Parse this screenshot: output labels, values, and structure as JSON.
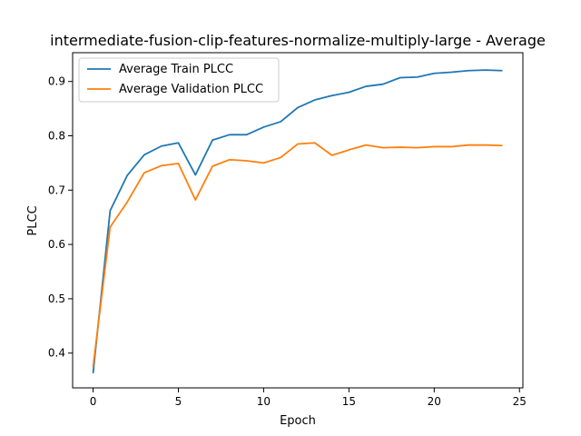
{
  "chart_data": {
    "type": "line",
    "title": "intermediate-fusion-clip-features-normalize-multiply-large - Average",
    "xlabel": "Epoch",
    "ylabel": "PLCC",
    "xlim": [
      -1.2,
      25.2
    ],
    "ylim": [
      0.336,
      0.953
    ],
    "xticks": [
      0,
      5,
      10,
      15,
      20,
      25
    ],
    "yticks": [
      0.4,
      0.5,
      0.6,
      0.7,
      0.8,
      0.9
    ],
    "xtick_labels": [
      "0",
      "5",
      "10",
      "15",
      "20",
      "25"
    ],
    "ytick_labels": [
      "0.4",
      "0.5",
      "0.6",
      "0.7",
      "0.8",
      "0.9"
    ],
    "grid": false,
    "legend_position": "upper-left",
    "x": [
      0,
      1,
      2,
      3,
      4,
      5,
      6,
      7,
      8,
      9,
      10,
      11,
      12,
      13,
      14,
      15,
      16,
      17,
      18,
      19,
      20,
      21,
      22,
      23,
      24
    ],
    "series": [
      {
        "name": "Average Train PLCC",
        "color": "#1f77b4",
        "values": [
          0.363,
          0.662,
          0.727,
          0.765,
          0.781,
          0.787,
          0.728,
          0.792,
          0.802,
          0.802,
          0.816,
          0.826,
          0.852,
          0.866,
          0.874,
          0.88,
          0.891,
          0.895,
          0.907,
          0.908,
          0.915,
          0.917,
          0.92,
          0.921,
          0.92
        ]
      },
      {
        "name": "Average Validation PLCC",
        "color": "#ff7f0e",
        "values": [
          0.375,
          0.632,
          0.678,
          0.732,
          0.745,
          0.749,
          0.682,
          0.744,
          0.756,
          0.754,
          0.75,
          0.76,
          0.785,
          0.787,
          0.764,
          0.774,
          0.783,
          0.778,
          0.779,
          0.778,
          0.78,
          0.78,
          0.783,
          0.783,
          0.782
        ]
      }
    ]
  }
}
